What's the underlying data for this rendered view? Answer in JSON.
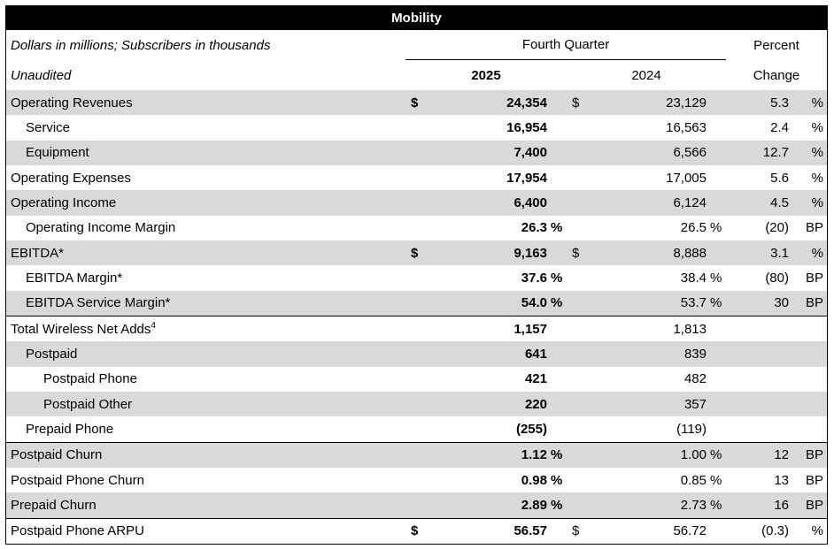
{
  "banner": {
    "title": "Mobility"
  },
  "header": {
    "note_line1": "Dollars in millions; Subscribers in thousands",
    "note_line2": "Unaudited",
    "period_group": "Fourth Quarter",
    "col_2025": "2025",
    "col_2024": "2024",
    "percent_line1": "Percent",
    "percent_line2": "Change"
  },
  "colors": {
    "banner_bg": "#000000",
    "banner_text": "#ffffff",
    "row_shade": "#d9d9d9"
  },
  "rows": [
    {
      "label": "Operating Revenues",
      "sup": "",
      "indent": 0,
      "shaded": true,
      "rule_above": false,
      "cur_2025": "$",
      "val_2025": "24,354",
      "suf_2025": "",
      "cur_2024": "$",
      "val_2024": "23,129",
      "suf_2024": "",
      "chg_val": "5.3",
      "chg_unit": "%"
    },
    {
      "label": "Service",
      "sup": "",
      "indent": 1,
      "shaded": false,
      "rule_above": false,
      "cur_2025": "",
      "val_2025": "16,954",
      "suf_2025": "",
      "cur_2024": "",
      "val_2024": "16,563",
      "suf_2024": "",
      "chg_val": "2.4",
      "chg_unit": "%"
    },
    {
      "label": "Equipment",
      "sup": "",
      "indent": 1,
      "shaded": true,
      "rule_above": false,
      "cur_2025": "",
      "val_2025": "7,400",
      "suf_2025": "",
      "cur_2024": "",
      "val_2024": "6,566",
      "suf_2024": "",
      "chg_val": "12.7",
      "chg_unit": "%"
    },
    {
      "label": "Operating Expenses",
      "sup": "",
      "indent": 0,
      "shaded": false,
      "rule_above": false,
      "cur_2025": "",
      "val_2025": "17,954",
      "suf_2025": "",
      "cur_2024": "",
      "val_2024": "17,005",
      "suf_2024": "",
      "chg_val": "5.6",
      "chg_unit": "%"
    },
    {
      "label": "Operating Income",
      "sup": "",
      "indent": 0,
      "shaded": true,
      "rule_above": false,
      "cur_2025": "",
      "val_2025": "6,400",
      "suf_2025": "",
      "cur_2024": "",
      "val_2024": "6,124",
      "suf_2024": "",
      "chg_val": "4.5",
      "chg_unit": "%"
    },
    {
      "label": "Operating Income Margin",
      "sup": "",
      "indent": 1,
      "shaded": false,
      "rule_above": false,
      "cur_2025": "",
      "val_2025": "26.3",
      "suf_2025": "%",
      "cur_2024": "",
      "val_2024": "26.5",
      "suf_2024": "%",
      "chg_val": "(20)",
      "chg_unit": "BP"
    },
    {
      "label": "EBITDA*",
      "sup": "",
      "indent": 0,
      "shaded": true,
      "rule_above": false,
      "cur_2025": "$",
      "val_2025": "9,163",
      "suf_2025": "",
      "cur_2024": "$",
      "val_2024": "8,888",
      "suf_2024": "",
      "chg_val": "3.1",
      "chg_unit": "%"
    },
    {
      "label": "EBITDA Margin*",
      "sup": "",
      "indent": 1,
      "shaded": false,
      "rule_above": false,
      "cur_2025": "",
      "val_2025": "37.6",
      "suf_2025": "%",
      "cur_2024": "",
      "val_2024": "38.4",
      "suf_2024": "%",
      "chg_val": "(80)",
      "chg_unit": "BP"
    },
    {
      "label": "EBITDA Service Margin*",
      "sup": "",
      "indent": 1,
      "shaded": true,
      "rule_above": false,
      "cur_2025": "",
      "val_2025": "54.0",
      "suf_2025": "%",
      "cur_2024": "",
      "val_2024": "53.7",
      "suf_2024": "%",
      "chg_val": "30",
      "chg_unit": "BP"
    },
    {
      "label": "Total Wireless Net Adds",
      "sup": "4",
      "indent": 0,
      "shaded": false,
      "rule_above": true,
      "cur_2025": "",
      "val_2025": "1,157",
      "suf_2025": "",
      "cur_2024": "",
      "val_2024": "1,813",
      "suf_2024": "",
      "chg_val": "",
      "chg_unit": ""
    },
    {
      "label": "Postpaid",
      "sup": "",
      "indent": 1,
      "shaded": true,
      "rule_above": false,
      "cur_2025": "",
      "val_2025": "641",
      "suf_2025": "",
      "cur_2024": "",
      "val_2024": "839",
      "suf_2024": "",
      "chg_val": "",
      "chg_unit": ""
    },
    {
      "label": "Postpaid Phone",
      "sup": "",
      "indent": 2,
      "shaded": false,
      "rule_above": false,
      "cur_2025": "",
      "val_2025": "421",
      "suf_2025": "",
      "cur_2024": "",
      "val_2024": "482",
      "suf_2024": "",
      "chg_val": "",
      "chg_unit": ""
    },
    {
      "label": "Postpaid Other",
      "sup": "",
      "indent": 2,
      "shaded": true,
      "rule_above": false,
      "cur_2025": "",
      "val_2025": "220",
      "suf_2025": "",
      "cur_2024": "",
      "val_2024": "357",
      "suf_2024": "",
      "chg_val": "",
      "chg_unit": ""
    },
    {
      "label": "Prepaid Phone",
      "sup": "",
      "indent": 1,
      "shaded": false,
      "rule_above": false,
      "cur_2025": "",
      "val_2025": "(255)",
      "suf_2025": "",
      "cur_2024": "",
      "val_2024": "(119)",
      "suf_2024": "",
      "chg_val": "",
      "chg_unit": ""
    },
    {
      "label": "Postpaid Churn",
      "sup": "",
      "indent": 0,
      "shaded": true,
      "rule_above": true,
      "cur_2025": "",
      "val_2025": "1.12",
      "suf_2025": "%",
      "cur_2024": "",
      "val_2024": "1.00",
      "suf_2024": "%",
      "chg_val": "12",
      "chg_unit": "BP"
    },
    {
      "label": "Postpaid Phone Churn",
      "sup": "",
      "indent": 0,
      "shaded": false,
      "rule_above": false,
      "cur_2025": "",
      "val_2025": "0.98",
      "suf_2025": "%",
      "cur_2024": "",
      "val_2024": "0.85",
      "suf_2024": "%",
      "chg_val": "13",
      "chg_unit": "BP"
    },
    {
      "label": "Prepaid Churn",
      "sup": "",
      "indent": 0,
      "shaded": true,
      "rule_above": false,
      "cur_2025": "",
      "val_2025": "2.89",
      "suf_2025": "%",
      "cur_2024": "",
      "val_2024": "2.73",
      "suf_2024": "%",
      "chg_val": "16",
      "chg_unit": "BP"
    },
    {
      "label": "Postpaid Phone ARPU",
      "sup": "",
      "indent": 0,
      "shaded": false,
      "rule_above": true,
      "cur_2025": "$",
      "val_2025": "56.57",
      "suf_2025": "",
      "cur_2024": "$",
      "val_2024": "56.72",
      "suf_2024": "",
      "chg_val": "(0.3)",
      "chg_unit": "%"
    }
  ]
}
